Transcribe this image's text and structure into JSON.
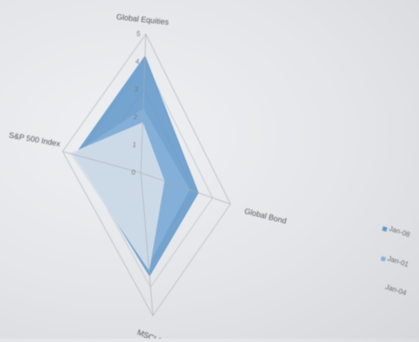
{
  "chart_data": {
    "type": "radar",
    "axes": [
      "Global Equities",
      "Global Bond",
      "MSCI EM",
      "S&P 500 Index"
    ],
    "ticks": [
      "0",
      "1",
      "2",
      "3",
      "4",
      "5"
    ],
    "range": [
      0,
      5
    ],
    "series": [
      {
        "name": "Jan-08",
        "values": [
          4.2,
          3.2,
          3.6,
          4.2
        ],
        "color": "#5f96c9"
      },
      {
        "name": "Jan-01",
        "values": [
          2.3,
          2.7,
          3.2,
          4.3
        ],
        "color": "#86b1d9"
      },
      {
        "name": "Jan-04",
        "values": [
          1.8,
          1.3,
          3.4,
          4.5
        ],
        "color": "#d5dfea"
      }
    ],
    "legend_position": "right",
    "grid": true
  }
}
